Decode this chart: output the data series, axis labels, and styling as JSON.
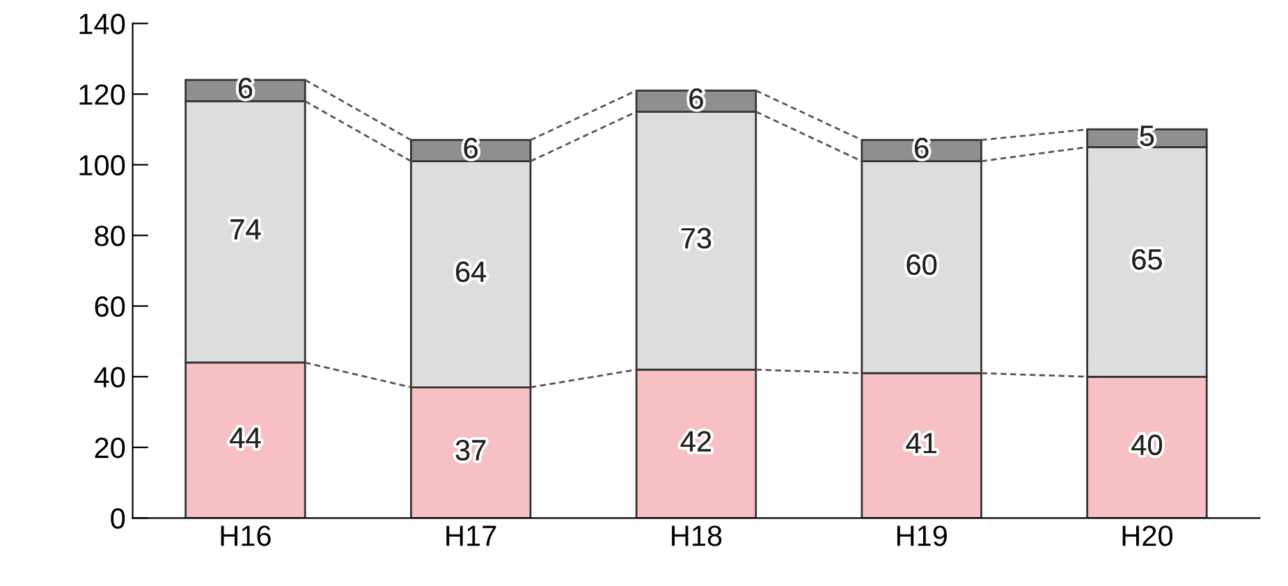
{
  "chart_data": {
    "type": "bar",
    "stacked": true,
    "data_labels": true,
    "categories": [
      "H16",
      "H17",
      "H18",
      "H19",
      "H20"
    ],
    "series": [
      {
        "color": "#f7c0c4",
        "values": [
          44,
          37,
          42,
          41,
          40
        ]
      },
      {
        "color": "#dcdddf",
        "values": [
          74,
          64,
          73,
          60,
          65
        ]
      },
      {
        "color": "#8f8f91",
        "values": [
          6,
          6,
          6,
          6,
          5
        ]
      }
    ],
    "ylim": [
      0,
      140
    ],
    "yticks": [
      0,
      20,
      40,
      60,
      80,
      100,
      120,
      140
    ],
    "grid": false,
    "legend": false
  }
}
